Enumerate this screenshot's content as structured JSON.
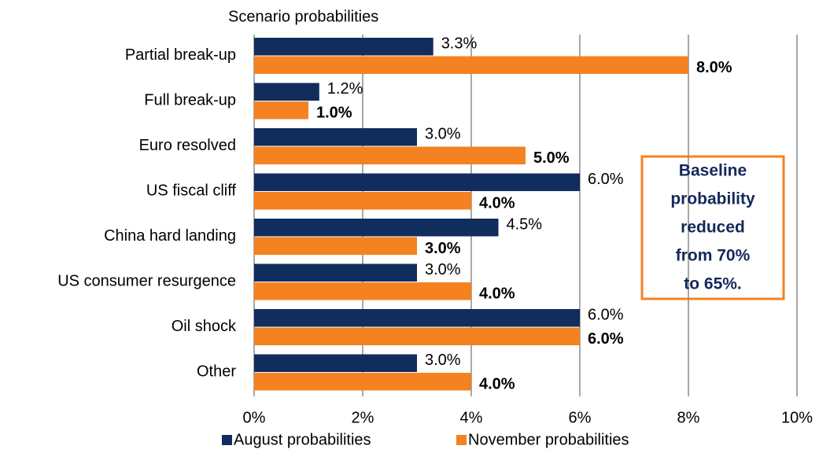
{
  "chart_data": {
    "type": "hbar",
    "title": "Scenario probabilities",
    "categories": [
      "Partial break-up",
      "Full break-up",
      "Euro resolved",
      "US fiscal cliff",
      "China hard landing",
      "US consumer resurgence",
      "Oil shock",
      "Other"
    ],
    "series": [
      {
        "name": "August probabilities",
        "color": "#112d5e",
        "bold": false,
        "values": [
          3.3,
          1.2,
          3.0,
          6.0,
          4.5,
          3.0,
          6.0,
          3.0
        ],
        "value_labels": [
          "3.3%",
          "1.2%",
          "3.0%",
          "6.0%",
          "4.5%",
          "3.0%",
          "6.0%",
          "3.0%"
        ]
      },
      {
        "name": "November probabilities",
        "color": "#f58220",
        "bold": true,
        "values": [
          8.0,
          1.0,
          5.0,
          4.0,
          3.0,
          4.0,
          6.0,
          4.0
        ],
        "value_labels": [
          "8.0%",
          "1.0%",
          "5.0%",
          "4.0%",
          "3.0%",
          "4.0%",
          "6.0%",
          "4.0%"
        ]
      }
    ],
    "xlim": [
      0,
      10
    ],
    "xticks": [
      {
        "value": 0,
        "label": "0%"
      },
      {
        "value": 2,
        "label": "2%"
      },
      {
        "value": 4,
        "label": "4%"
      },
      {
        "value": 6,
        "label": "6%"
      },
      {
        "value": 8,
        "label": "8%"
      },
      {
        "value": 10,
        "label": "10%"
      }
    ],
    "grid": true,
    "legend": "bottom",
    "annotation": [
      "Baseline",
      "probability",
      "reduced",
      "from 70%",
      "to 65%."
    ]
  }
}
